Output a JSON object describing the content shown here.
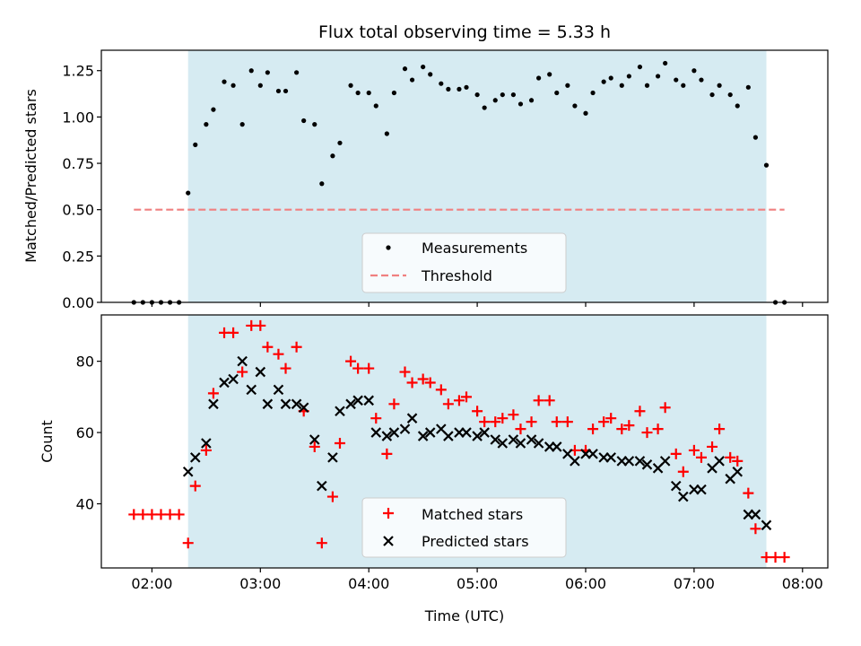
{
  "chart_data": [
    {
      "type": "scatter",
      "title": "Flux total observing time = 5.33 h",
      "xlabel": "",
      "ylabel": "Matched/Predicted stars",
      "xlim": [
        "01:32",
        "08:14"
      ],
      "ylim": [
        0,
        1.36
      ],
      "yticks": [
        0.0,
        0.25,
        0.5,
        0.75,
        1.0,
        1.25
      ],
      "ytick_labels": [
        "0.00",
        "0.25",
        "0.50",
        "0.75",
        "1.00",
        "1.25"
      ],
      "xticks": [
        "02:00",
        "03:00",
        "04:00",
        "05:00",
        "06:00",
        "07:00",
        "08:00"
      ],
      "shaded_span": {
        "start": "02:20",
        "end": "07:40",
        "color": "#add8e6"
      },
      "legend": {
        "placement": "lower center",
        "entries": [
          "Measurements",
          "Threshold"
        ]
      },
      "series": [
        {
          "name": "Measurements",
          "marker": "dot",
          "color": "#000000",
          "x": [
            "01:50",
            "01:55",
            "02:00",
            "02:05",
            "02:10",
            "02:15",
            "02:20",
            "02:24",
            "02:30",
            "02:34",
            "02:40",
            "02:45",
            "02:50",
            "02:55",
            "03:00",
            "03:04",
            "03:10",
            "03:14",
            "03:20",
            "03:24",
            "03:30",
            "03:34",
            "03:40",
            "03:44",
            "03:50",
            "03:54",
            "04:00",
            "04:04",
            "04:10",
            "04:14",
            "04:20",
            "04:24",
            "04:30",
            "04:34",
            "04:40",
            "04:44",
            "04:50",
            "04:54",
            "05:00",
            "05:04",
            "05:10",
            "05:14",
            "05:20",
            "05:24",
            "05:30",
            "05:34",
            "05:40",
            "05:44",
            "05:50",
            "05:54",
            "06:00",
            "06:04",
            "06:10",
            "06:14",
            "06:20",
            "06:24",
            "06:30",
            "06:34",
            "06:40",
            "06:44",
            "06:50",
            "06:54",
            "07:00",
            "07:04",
            "07:10",
            "07:14",
            "07:20",
            "07:24",
            "07:30",
            "07:34",
            "07:40",
            "07:45",
            "07:50"
          ],
          "y": [
            0,
            0,
            0,
            0,
            0,
            0,
            0.59,
            0.85,
            0.96,
            1.04,
            1.19,
            1.17,
            0.96,
            1.25,
            1.17,
            1.24,
            1.14,
            1.14,
            1.24,
            0.98,
            0.96,
            0.64,
            0.79,
            0.86,
            1.17,
            1.13,
            1.13,
            1.06,
            0.91,
            1.13,
            1.26,
            1.2,
            1.27,
            1.23,
            1.18,
            1.15,
            1.15,
            1.16,
            1.12,
            1.05,
            1.09,
            1.12,
            1.12,
            1.07,
            1.09,
            1.21,
            1.23,
            1.13,
            1.17,
            1.06,
            1.02,
            1.13,
            1.19,
            1.21,
            1.17,
            1.22,
            1.27,
            1.17,
            1.22,
            1.29,
            1.2,
            1.17,
            1.25,
            1.2,
            1.12,
            1.17,
            1.12,
            1.06,
            1.16,
            0.89,
            0.74,
            0,
            0
          ]
        },
        {
          "name": "Threshold",
          "style": "dashed",
          "color": "#f08080",
          "x": [
            "01:50",
            "07:50"
          ],
          "y": [
            0.5,
            0.5
          ]
        }
      ]
    },
    {
      "type": "scatter",
      "title": "",
      "xlabel": "Time (UTC)",
      "ylabel": "Count",
      "xlim": [
        "01:32",
        "08:14"
      ],
      "ylim": [
        22,
        93
      ],
      "yticks": [
        40,
        60,
        80
      ],
      "ytick_labels": [
        "40",
        "60",
        "80"
      ],
      "xticks": [
        "02:00",
        "03:00",
        "04:00",
        "05:00",
        "06:00",
        "07:00",
        "08:00"
      ],
      "shaded_span": {
        "start": "02:20",
        "end": "07:40",
        "color": "#add8e6"
      },
      "legend": {
        "placement": "lower center",
        "entries": [
          "Matched stars",
          "Predicted stars"
        ]
      },
      "series": [
        {
          "name": "Matched stars",
          "marker": "plus",
          "color": "#ff0000",
          "x": [
            "01:50",
            "01:55",
            "02:00",
            "02:05",
            "02:10",
            "02:15",
            "02:20",
            "02:24",
            "02:30",
            "02:34",
            "02:40",
            "02:45",
            "02:50",
            "02:55",
            "03:00",
            "03:04",
            "03:10",
            "03:14",
            "03:20",
            "03:24",
            "03:30",
            "03:34",
            "03:40",
            "03:44",
            "03:50",
            "03:54",
            "04:00",
            "04:04",
            "04:10",
            "04:14",
            "04:20",
            "04:24",
            "04:30",
            "04:34",
            "04:40",
            "04:44",
            "04:50",
            "04:54",
            "05:00",
            "05:04",
            "05:10",
            "05:14",
            "05:20",
            "05:24",
            "05:30",
            "05:34",
            "05:40",
            "05:44",
            "05:50",
            "05:54",
            "06:00",
            "06:04",
            "06:10",
            "06:14",
            "06:20",
            "06:24",
            "06:30",
            "06:34",
            "06:40",
            "06:44",
            "06:50",
            "06:54",
            "07:00",
            "07:04",
            "07:10",
            "07:14",
            "07:20",
            "07:24",
            "07:30",
            "07:34",
            "07:40",
            "07:45",
            "07:50"
          ],
          "y": [
            37,
            37,
            37,
            37,
            37,
            37,
            29,
            45,
            55,
            71,
            88,
            88,
            77,
            90,
            90,
            84,
            82,
            78,
            84,
            66,
            56,
            29,
            42,
            57,
            80,
            78,
            78,
            64,
            54,
            68,
            77,
            74,
            75,
            74,
            72,
            68,
            69,
            70,
            66,
            63,
            63,
            64,
            65,
            61,
            63,
            69,
            69,
            63,
            63,
            55,
            55,
            61,
            63,
            64,
            61,
            62,
            66,
            60,
            61,
            67,
            54,
            49,
            55,
            53,
            56,
            61,
            53,
            52,
            43,
            33,
            25,
            25,
            25
          ]
        },
        {
          "name": "Predicted stars",
          "marker": "x",
          "color": "#000000",
          "x": [
            "02:20",
            "02:24",
            "02:30",
            "02:34",
            "02:40",
            "02:45",
            "02:50",
            "02:55",
            "03:00",
            "03:04",
            "03:10",
            "03:14",
            "03:20",
            "03:24",
            "03:30",
            "03:34",
            "03:40",
            "03:44",
            "03:50",
            "03:54",
            "04:00",
            "04:04",
            "04:10",
            "04:14",
            "04:20",
            "04:24",
            "04:30",
            "04:34",
            "04:40",
            "04:44",
            "04:50",
            "04:54",
            "05:00",
            "05:04",
            "05:10",
            "05:14",
            "05:20",
            "05:24",
            "05:30",
            "05:34",
            "05:40",
            "05:44",
            "05:50",
            "05:54",
            "06:00",
            "06:04",
            "06:10",
            "06:14",
            "06:20",
            "06:24",
            "06:30",
            "06:34",
            "06:40",
            "06:44",
            "06:50",
            "06:54",
            "07:00",
            "07:04",
            "07:10",
            "07:14",
            "07:20",
            "07:24",
            "07:30",
            "07:34",
            "07:40"
          ],
          "y": [
            49,
            53,
            57,
            68,
            74,
            75,
            80,
            72,
            77,
            68,
            72,
            68,
            68,
            67,
            58,
            45,
            53,
            66,
            68,
            69,
            69,
            60,
            59,
            60,
            61,
            64,
            59,
            60,
            61,
            59,
            60,
            60,
            59,
            60,
            58,
            57,
            58,
            57,
            58,
            57,
            56,
            56,
            54,
            52,
            54,
            54,
            53,
            53,
            52,
            52,
            52,
            51,
            50,
            52,
            45,
            42,
            44,
            44,
            50,
            52,
            47,
            49,
            37,
            37,
            34
          ]
        }
      ]
    }
  ]
}
